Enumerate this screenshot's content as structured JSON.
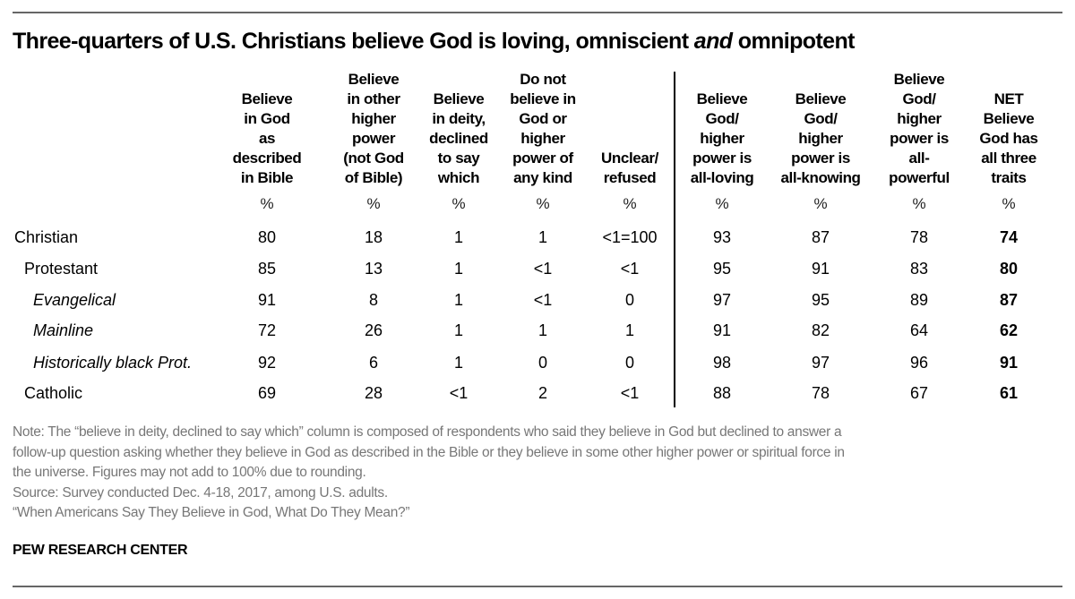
{
  "title_parts": [
    "Three-quarters of U.S. Christians believe God is loving, omniscient ",
    "and",
    " omnipotent"
  ],
  "chart_data": {
    "type": "table",
    "title": "Three-quarters of U.S. Christians believe God is loving, omniscient and omnipotent",
    "columns": [
      "Believe in God as described in Bible",
      "Believe in other higher power (not God of Bible)",
      "Believe in deity, declined to say which",
      "Do not believe in God or higher power of any kind",
      "Unclear/ refused",
      "Believe God/ higher power is all-loving",
      "Believe God/ higher power is all-knowing",
      "Believe God/ higher power is all-powerful",
      "NET Believe God has all three traits"
    ],
    "column_header_lines": [
      [
        "Believe",
        "in God",
        "as",
        "described",
        "in Bible"
      ],
      [
        "Believe",
        "in other",
        "higher",
        "power",
        "(not God",
        "of Bible)"
      ],
      [
        "Believe",
        "in deity,",
        "declined",
        "to say",
        "which"
      ],
      [
        "Do not",
        "believe in",
        "God or",
        "higher",
        "power of",
        "any kind"
      ],
      [
        "Unclear/",
        "refused"
      ],
      [
        "Believe",
        "God/",
        "higher",
        "power is",
        "all-loving"
      ],
      [
        "Believe",
        "God/",
        "higher",
        "power is",
        "all-knowing"
      ],
      [
        "Believe",
        "God/",
        "higher",
        "power is",
        "all-",
        "powerful"
      ],
      [
        "NET",
        "Believe",
        "God has",
        "all three",
        "traits"
      ]
    ],
    "unit_row": [
      "%",
      "%",
      "%",
      "%",
      "%",
      "%",
      "%",
      "%",
      "%"
    ],
    "rows": [
      {
        "label": "Christian",
        "indent": 0,
        "italic": false,
        "values": [
          "80",
          "18",
          "1",
          "1",
          "<1=100",
          "93",
          "87",
          "78",
          "74"
        ]
      },
      {
        "label": "Protestant",
        "indent": 1,
        "italic": false,
        "values": [
          "85",
          "13",
          "1",
          "<1",
          "<1",
          "95",
          "91",
          "83",
          "80"
        ]
      },
      {
        "label": "Evangelical",
        "indent": 2,
        "italic": true,
        "values": [
          "91",
          "8",
          "1",
          "<1",
          "0",
          "97",
          "95",
          "89",
          "87"
        ]
      },
      {
        "label": "Mainline",
        "indent": 2,
        "italic": true,
        "values": [
          "72",
          "26",
          "1",
          "1",
          "1",
          "91",
          "82",
          "64",
          "62"
        ]
      },
      {
        "label": "Historically black Prot.",
        "indent": 2,
        "italic": true,
        "values": [
          "92",
          "6",
          "1",
          "0",
          "0",
          "98",
          "97",
          "96",
          "91"
        ]
      },
      {
        "label": "Catholic",
        "indent": 1,
        "italic": false,
        "values": [
          "69",
          "28",
          "<1",
          "2",
          "<1",
          "88",
          "78",
          "67",
          "61"
        ]
      }
    ],
    "bold_columns": [
      8
    ]
  },
  "notes": {
    "note_lines": [
      "Note: The “believe in deity, declined to say which” column is composed of respondents who said they believe in God but declined to answer a",
      "follow-up question asking whether they believe in God as described in the Bible or they believe in some other higher power or spiritual force in",
      "the universe. Figures may not add to 100% due to rounding."
    ],
    "source": "Source: Survey conducted Dec. 4-18, 2017, among U.S. adults.",
    "report": "“When Americans Say They Believe in God, What Do They Mean?”"
  },
  "brand": "PEW RESEARCH CENTER"
}
